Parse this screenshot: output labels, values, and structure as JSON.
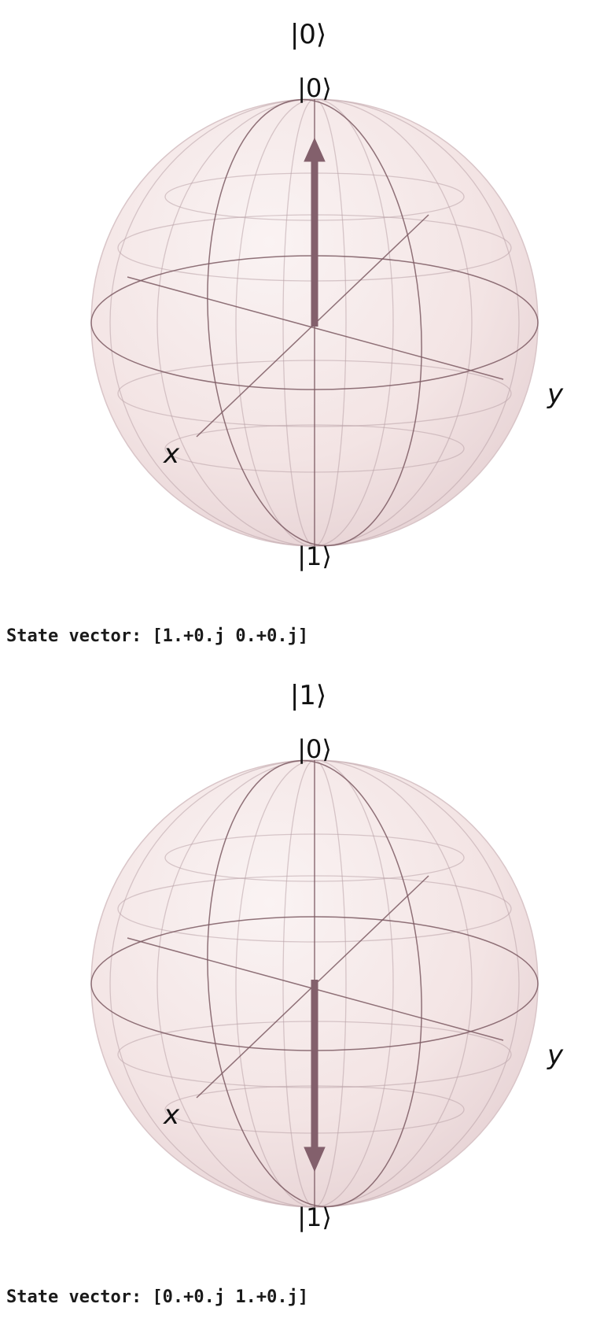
{
  "cells": [
    {
      "title": "|0⟩",
      "labels": {
        "north": "|0⟩",
        "south": "|1⟩",
        "x": "x",
        "y": "y"
      },
      "vector_direction": "up",
      "output": {
        "prefix": "State vector:",
        "value": "[1.+0.j 0.+0.j]"
      }
    },
    {
      "title": "|1⟩",
      "labels": {
        "north": "|0⟩",
        "south": "|1⟩",
        "x": "x",
        "y": "y"
      },
      "vector_direction": "down",
      "output": {
        "prefix": "State vector:",
        "value": "[0.+0.j 1.+0.j]"
      }
    }
  ],
  "colors": {
    "sphere_fill": "#f3e6e6",
    "grid_line": "#b9a3a8",
    "frame_line": "#7d5a63",
    "vector": "#83606c"
  }
}
